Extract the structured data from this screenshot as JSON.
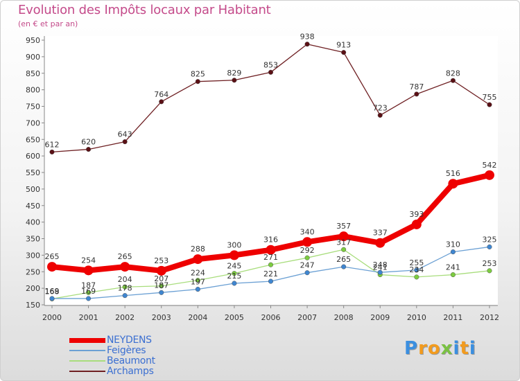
{
  "title": "Evolution des Impôts locaux par Habitant",
  "subtitle": "(en € et par an)",
  "logo": {
    "text": "Proxiti",
    "letters": [
      "P",
      "r",
      "o",
      "x",
      "i",
      "t",
      "i"
    ],
    "colors": [
      "#3b8fe0",
      "#f29b1e",
      "#f29b1e",
      "#7ac143",
      "#3b8fe0",
      "#f29b1e",
      "#3b8fe0"
    ]
  },
  "chart_data": {
    "type": "line",
    "title": "Evolution des Impôts locaux par Habitant",
    "subtitle": "(en € et par an)",
    "xlabel": "",
    "ylabel": "",
    "ylim": [
      150,
      950
    ],
    "yticks": [
      150,
      200,
      250,
      300,
      350,
      400,
      450,
      500,
      550,
      600,
      650,
      700,
      750,
      800,
      850,
      900,
      950
    ],
    "grid": false,
    "legend_position": "bottom-left",
    "categories": [
      "2000",
      "2001",
      "2002",
      "2003",
      "2004",
      "2005",
      "2006",
      "2007",
      "2008",
      "2009",
      "2010",
      "2011",
      "2012"
    ],
    "series": [
      {
        "name": "Archamps",
        "color": "#6e1f22",
        "point_color": "#5a1015",
        "values": [
          612,
          620,
          643,
          764,
          825,
          829,
          853,
          938,
          913,
          723,
          787,
          828,
          755
        ],
        "labels": [
          "612",
          "620",
          "643",
          "764",
          "825",
          "829",
          "853",
          "938",
          "913",
          "723",
          "787",
          "828",
          "755"
        ]
      },
      {
        "name": "Beaumont",
        "color": "#a8dd7c",
        "point_color": "#7ccc3f",
        "values": [
          168,
          187,
          204,
          207,
          224,
          245,
          271,
          292,
          317,
          241,
          234,
          241,
          253
        ],
        "labels": [
          "168",
          "187",
          "204",
          "207",
          "224",
          "245",
          "271",
          "292",
          "317",
          "241",
          "234",
          "241",
          "253"
        ]
      },
      {
        "name": "Feigères",
        "color": "#6ba0d4",
        "point_color": "#3f86d0",
        "values": [
          169,
          169,
          178,
          187,
          197,
          215,
          221,
          247,
          265,
          248,
          255,
          310,
          325
        ],
        "labels": [
          "169",
          "169",
          "178",
          "187",
          "197",
          "215",
          "221",
          "247",
          "265",
          "248",
          "255",
          "310",
          "325"
        ]
      },
      {
        "name": "NEYDENS",
        "color": "#ee0000",
        "point_color": "#ee0000",
        "values": [
          265,
          254,
          265,
          253,
          288,
          300,
          316,
          340,
          357,
          337,
          393,
          516,
          542
        ],
        "labels": [
          "265",
          "254",
          "265",
          "253",
          "288",
          "300",
          "316",
          "340",
          "357",
          "337",
          "393",
          "516",
          "542"
        ]
      }
    ]
  },
  "legend": [
    {
      "name": "NEYDENS",
      "color": "#ee0000",
      "thickness": 7
    },
    {
      "name": "Feigères",
      "color": "#6ba0d4",
      "thickness": 2
    },
    {
      "name": "Beaumont",
      "color": "#a8dd7c",
      "thickness": 2
    },
    {
      "name": "Archamps",
      "color": "#6e1f22",
      "thickness": 2
    }
  ]
}
